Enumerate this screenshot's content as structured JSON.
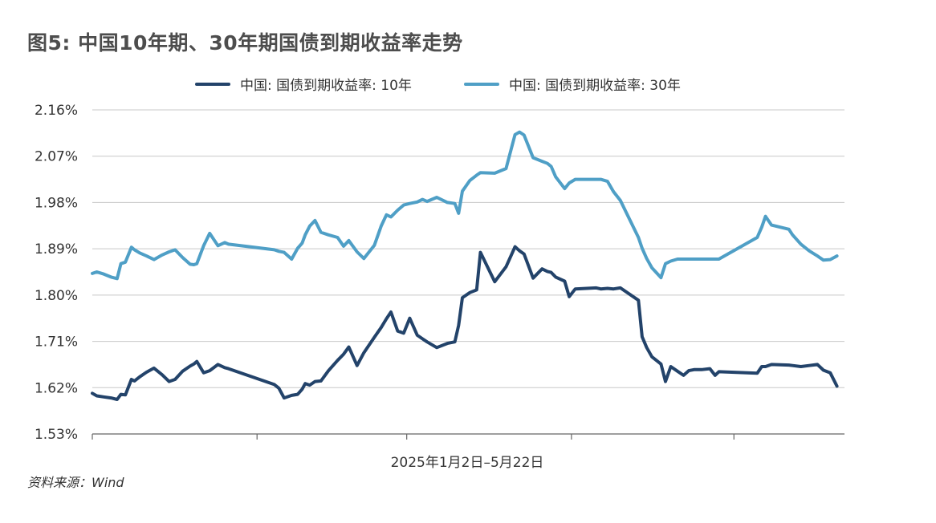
{
  "title": "图5: 中国10年期、30年期国债到期收益率走势",
  "source": "资料来源：Wind",
  "chart_data": {
    "type": "line",
    "title": "图5: 中国10年期、30年期国债到期收益率走势",
    "xlabel": "2025年1月2日–5月22日",
    "ylabel": "",
    "ylim": [
      1.53,
      2.16
    ],
    "yticks": [
      "2.16%",
      "2.07%",
      "1.98%",
      "1.89%",
      "1.80%",
      "1.71%",
      "1.62%",
      "1.53%"
    ],
    "ytick_values": [
      2.16,
      2.07,
      1.98,
      1.89,
      1.8,
      1.71,
      1.62,
      1.53
    ],
    "grid": true,
    "legend_position": "top",
    "x_range": [
      0,
      100
    ],
    "x_ticks": [
      0,
      21.9,
      41.8,
      63.7,
      85.3
    ],
    "series": [
      {
        "name": "中国: 国债到期收益率: 10年",
        "color": "#23436a",
        "x": [
          0,
          0.6,
          1.5,
          2.5,
          3.3,
          3.8,
          4.4,
          5.2,
          5.6,
          6.3,
          7.2,
          8.2,
          9.3,
          10.2,
          11.0,
          12.0,
          13.0,
          13.5,
          13.9,
          14.8,
          15.6,
          16.7,
          17.6,
          18.1,
          24.2,
          24.8,
          25.5,
          26.5,
          27.3,
          27.9,
          28.3,
          28.9,
          29.6,
          30.4,
          31.4,
          32.6,
          33.4,
          34.1,
          35.2,
          36.1,
          37.5,
          38.4,
          39.1,
          39.7,
          40.6,
          41.4,
          42.2,
          43.2,
          43.9,
          44.5,
          45.8,
          47.2,
          48.2,
          48.7,
          49.2,
          50.2,
          51.1,
          51.6,
          53.5,
          55.0,
          56.2,
          56.8,
          57.4,
          58.6,
          59.8,
          60.5,
          61.0,
          61.6,
          62.8,
          63.4,
          64.2,
          67.0,
          67.6,
          68.5,
          69.3,
          70.2,
          72.6,
          73.1,
          73.7,
          74.4,
          75.6,
          76.2,
          76.9,
          77.8,
          78.6,
          79.3,
          80.0,
          81.0,
          82.1,
          82.8,
          83.3,
          88.4,
          89.0,
          89.5,
          90.3,
          92.6,
          93.1,
          94.2,
          95.3,
          96.4,
          97.2,
          98.1,
          99.0
        ],
        "values": [
          1.609,
          1.604,
          1.602,
          1.6,
          1.597,
          1.607,
          1.606,
          1.636,
          1.633,
          1.641,
          1.65,
          1.658,
          1.645,
          1.632,
          1.636,
          1.652,
          1.662,
          1.666,
          1.671,
          1.649,
          1.653,
          1.665,
          1.659,
          1.657,
          1.626,
          1.619,
          1.6,
          1.605,
          1.607,
          1.617,
          1.628,
          1.625,
          1.632,
          1.633,
          1.653,
          1.673,
          1.685,
          1.699,
          1.663,
          1.688,
          1.718,
          1.737,
          1.754,
          1.767,
          1.73,
          1.726,
          1.755,
          1.722,
          1.715,
          1.709,
          1.698,
          1.706,
          1.709,
          1.741,
          1.795,
          1.805,
          1.81,
          1.883,
          1.826,
          1.855,
          1.894,
          1.886,
          1.88,
          1.833,
          1.851,
          1.846,
          1.844,
          1.835,
          1.827,
          1.797,
          1.812,
          1.814,
          1.812,
          1.813,
          1.812,
          1.814,
          1.79,
          1.719,
          1.698,
          1.68,
          1.666,
          1.632,
          1.661,
          1.652,
          1.644,
          1.653,
          1.655,
          1.655,
          1.657,
          1.644,
          1.651,
          1.648,
          1.661,
          1.661,
          1.665,
          1.664,
          1.663,
          1.661,
          1.663,
          1.665,
          1.654,
          1.649,
          1.623
        ]
      },
      {
        "name": "中国: 国债到期收益率: 30年",
        "color": "#4f9fc6",
        "x": [
          0,
          0.6,
          1.5,
          2.5,
          3.3,
          3.8,
          4.4,
          5.2,
          5.6,
          6.3,
          7.2,
          8.2,
          9.3,
          10.2,
          11.0,
          12.0,
          13.0,
          13.5,
          13.9,
          14.8,
          15.6,
          16.7,
          17.6,
          18.1,
          24.2,
          24.8,
          25.5,
          26.5,
          27.3,
          27.9,
          28.3,
          28.9,
          29.6,
          30.4,
          31.4,
          32.6,
          33.4,
          34.1,
          35.2,
          36.1,
          37.5,
          38.4,
          39.1,
          39.7,
          40.6,
          41.4,
          42.2,
          43.2,
          43.9,
          44.5,
          45.8,
          47.2,
          48.2,
          48.7,
          49.2,
          50.2,
          51.1,
          51.6,
          53.5,
          55.0,
          56.2,
          56.8,
          57.4,
          58.6,
          59.8,
          60.5,
          61.0,
          61.6,
          62.8,
          63.4,
          64.2,
          67.0,
          67.6,
          68.5,
          69.3,
          70.2,
          72.6,
          73.1,
          73.7,
          74.4,
          75.6,
          76.2,
          76.9,
          77.8,
          78.6,
          79.3,
          80.0,
          81.0,
          82.1,
          82.8,
          83.3,
          88.4,
          89.0,
          89.5,
          90.3,
          92.6,
          93.1,
          94.2,
          95.3,
          96.4,
          97.2,
          98.1,
          99.0
        ],
        "values": [
          1.842,
          1.845,
          1.841,
          1.835,
          1.832,
          1.861,
          1.864,
          1.893,
          1.888,
          1.882,
          1.876,
          1.869,
          1.878,
          1.884,
          1.888,
          1.873,
          1.86,
          1.859,
          1.861,
          1.896,
          1.92,
          1.896,
          1.902,
          1.899,
          1.888,
          1.885,
          1.883,
          1.87,
          1.891,
          1.901,
          1.917,
          1.934,
          1.945,
          1.922,
          1.917,
          1.912,
          1.895,
          1.906,
          1.884,
          1.871,
          1.897,
          1.934,
          1.956,
          1.952,
          1.965,
          1.975,
          1.978,
          1.981,
          1.986,
          1.982,
          1.99,
          1.98,
          1.978,
          1.959,
          2.002,
          2.023,
          2.033,
          2.038,
          2.037,
          2.046,
          2.112,
          2.117,
          2.111,
          2.067,
          2.06,
          2.056,
          2.05,
          2.03,
          2.007,
          2.018,
          2.025,
          2.025,
          2.025,
          2.021,
          2.001,
          1.984,
          1.912,
          1.891,
          1.871,
          1.853,
          1.834,
          1.861,
          1.866,
          1.87,
          1.87,
          1.87,
          1.87,
          1.87,
          1.87,
          1.87,
          1.87,
          1.912,
          1.932,
          1.953,
          1.936,
          1.928,
          1.917,
          1.899,
          1.886,
          1.876,
          1.868,
          1.869,
          1.876
        ]
      }
    ]
  }
}
